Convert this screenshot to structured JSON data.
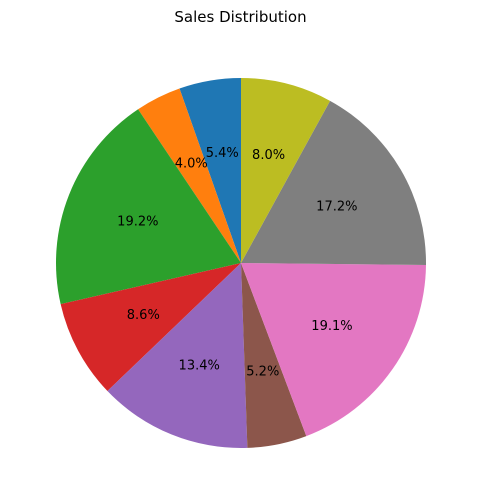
{
  "chart_data": {
    "type": "pie",
    "title": "Sales Distribution",
    "start_angle_deg": 90,
    "direction": "counterclockwise",
    "legend": "none",
    "slices": [
      {
        "label": "5.4%",
        "value": 5.4,
        "color": "#1f77b4"
      },
      {
        "label": "4.0%",
        "value": 4.0,
        "color": "#ff7f0e"
      },
      {
        "label": "19.2%",
        "value": 19.2,
        "color": "#2ca02c"
      },
      {
        "label": "8.6%",
        "value": 8.6,
        "color": "#d62728"
      },
      {
        "label": "13.4%",
        "value": 13.4,
        "color": "#9467bd"
      },
      {
        "label": "5.2%",
        "value": 5.2,
        "color": "#8c564b"
      },
      {
        "label": "19.1%",
        "value": 19.1,
        "color": "#e377c2"
      },
      {
        "label": "17.2%",
        "value": 17.2,
        "color": "#7f7f7f"
      },
      {
        "label": "8.0%",
        "value": 8.0,
        "color": "#bcbd22"
      }
    ]
  }
}
